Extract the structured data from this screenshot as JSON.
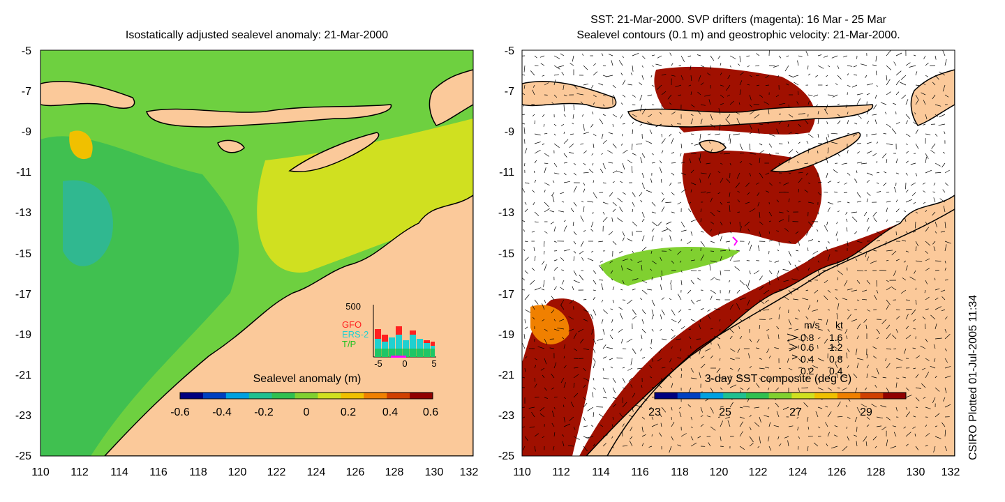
{
  "left_panel": {
    "title": "Isostatically adjusted sealevel anomaly: 21-Mar-2000",
    "colorbar": {
      "label": "Sealevel anomaly (m)",
      "ticks": [
        "-0.6",
        "-0.4",
        "-0.2",
        "0",
        "0.2",
        "0.4",
        "0.6"
      ],
      "colors": [
        "#00007f",
        "#0040c0",
        "#00a0e0",
        "#20c090",
        "#30c050",
        "#80d030",
        "#d0e020",
        "#f0c000",
        "#f08000",
        "#d04000",
        "#900000"
      ]
    },
    "y_ticks": [
      "-5",
      "-7",
      "-9",
      "-11",
      "-13",
      "-15",
      "-17",
      "-19",
      "-21",
      "-23",
      "-25"
    ],
    "x_ticks": [
      "110",
      "112",
      "114",
      "116",
      "118",
      "120",
      "122",
      "124",
      "126",
      "128",
      "130",
      "132"
    ],
    "inset": {
      "top_label": "500",
      "legend": [
        {
          "label": "GFO",
          "color": "#ff2020"
        },
        {
          "label": "ERS-2",
          "color": "#20d0d0"
        },
        {
          "label": "T/P",
          "color": "#20c020"
        }
      ],
      "x_ticks": [
        "-5",
        "0",
        "5"
      ]
    }
  },
  "right_panel": {
    "title_line1": "SST: 21-Mar-2000. SVP drifters (magenta): 16 Mar - 25 Mar",
    "title_line2": "Sealevel contours (0.1 m) and geostrophic velocity: 21-Mar-2000.",
    "colorbar": {
      "label": "3-day SST composite (deg C)",
      "ticks": [
        "23",
        "25",
        "27",
        "29"
      ],
      "colors": [
        "#00007f",
        "#0040c0",
        "#00a0e0",
        "#20c090",
        "#30c050",
        "#80d030",
        "#d0e020",
        "#f0c000",
        "#f08000",
        "#d04000",
        "#900000"
      ]
    },
    "y_ticks": [
      "-5",
      "-7",
      "-9",
      "-11",
      "-13",
      "-15",
      "-17",
      "-19",
      "-21",
      "-23",
      "-25"
    ],
    "x_ticks": [
      "110",
      "112",
      "114",
      "116",
      "118",
      "120",
      "122",
      "124",
      "126",
      "128",
      "130",
      "132"
    ],
    "velocity_legend": {
      "header_ms": "m/s",
      "header_kt": "kt",
      "rows": [
        {
          "ms": "0.8",
          "kt": "1.6"
        },
        {
          "ms": "0.6",
          "kt": "1.2"
        },
        {
          "ms": "0.4",
          "kt": "0.8"
        },
        {
          "ms": "0.2",
          "kt": "0.4"
        }
      ]
    }
  },
  "footer": {
    "plotted": "CSIRO Plotted 01-Jul-2005 11:34"
  },
  "colors": {
    "land": "#fbc99a",
    "sst_warm": "#a01000",
    "ocean_green": "#40c040"
  }
}
